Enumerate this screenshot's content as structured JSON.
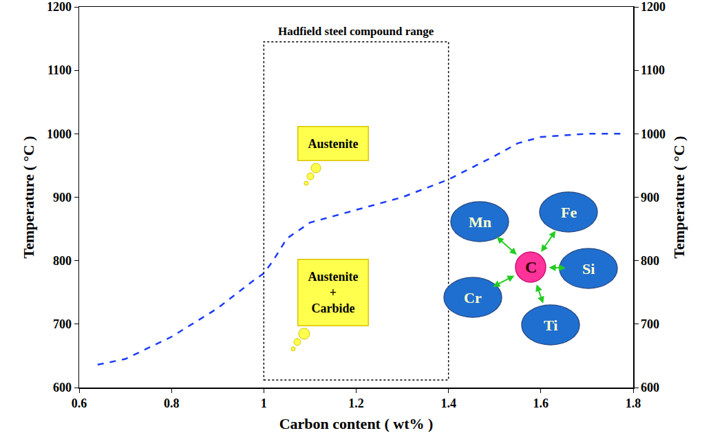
{
  "chart_data": {
    "type": "line",
    "xlabel": "Carbon content ( wt% )",
    "ylabel": "Temperature ( °C )",
    "y2label": "Temperature ( °C )",
    "x": [
      0.64,
      0.7,
      0.8,
      0.9,
      0.98,
      1.0,
      1.02,
      1.05,
      1.1,
      1.2,
      1.3,
      1.4,
      1.5,
      1.55,
      1.6,
      1.7,
      1.78
    ],
    "values": [
      636,
      645,
      680,
      725,
      770,
      780,
      800,
      835,
      860,
      880,
      900,
      928,
      965,
      985,
      995,
      1000,
      1000
    ],
    "color": "#1a3cff",
    "line_style": "dash",
    "xlim": [
      0.6,
      1.8
    ],
    "xticks": [
      0.6,
      0.8,
      1,
      1.2,
      1.4,
      1.6,
      1.8
    ],
    "ylim": [
      600,
      1200
    ],
    "yticks": [
      600,
      700,
      800,
      900,
      1000,
      1100,
      1200
    ],
    "y2lim": [
      600,
      1200
    ],
    "y2ticks": [
      600,
      700,
      800,
      900,
      1000,
      1100,
      1200
    ],
    "grid": false,
    "region": {
      "label": "Hadfield steel compound range",
      "x": [
        1.0,
        1.4
      ],
      "y": [
        612,
        1145
      ]
    },
    "annotations": [
      {
        "lines": [
          "Austenite"
        ],
        "x": 1.15,
        "y": 985
      },
      {
        "lines": [
          "Austenite",
          "+",
          "Carbide"
        ],
        "x": 1.15,
        "y": 750
      }
    ],
    "diagram": {
      "center": "C",
      "elements": [
        "Mn",
        "Fe",
        "Si",
        "Cr",
        "Ti"
      ]
    }
  }
}
